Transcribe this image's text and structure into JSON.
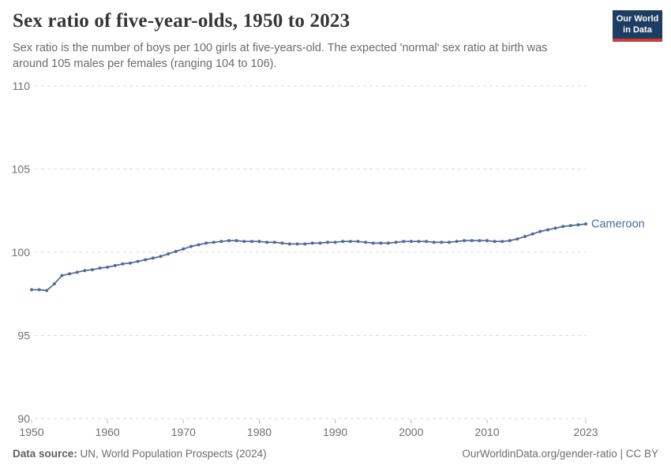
{
  "header": {
    "title": "Sex ratio of five-year-olds, 1950 to 2023",
    "subtitle": "Sex ratio is the number of boys per 100 girls at five-years-old. The expected 'normal' sex ratio at birth was around 105 males per females (ranging 104 to 106).",
    "logo": {
      "line1": "Our World",
      "line2": "in Data"
    }
  },
  "chart_data": {
    "type": "line",
    "title": "Sex ratio of five-year-olds, 1950 to 2023",
    "xlabel": "",
    "ylabel": "",
    "ylim": [
      90,
      110
    ],
    "yticks": [
      90,
      95,
      100,
      105,
      110
    ],
    "xticks": [
      1950,
      1960,
      1970,
      1980,
      1990,
      2000,
      2010,
      2023
    ],
    "grid": "horizontal-dashed",
    "legend": "end-of-line-label",
    "x": [
      1950,
      1951,
      1952,
      1953,
      1954,
      1955,
      1956,
      1957,
      1958,
      1959,
      1960,
      1961,
      1962,
      1963,
      1964,
      1965,
      1966,
      1967,
      1968,
      1969,
      1970,
      1971,
      1972,
      1973,
      1974,
      1975,
      1976,
      1977,
      1978,
      1979,
      1980,
      1981,
      1982,
      1983,
      1984,
      1985,
      1986,
      1987,
      1988,
      1989,
      1990,
      1991,
      1992,
      1993,
      1994,
      1995,
      1996,
      1997,
      1998,
      1999,
      2000,
      2001,
      2002,
      2003,
      2004,
      2005,
      2006,
      2007,
      2008,
      2009,
      2010,
      2011,
      2012,
      2013,
      2014,
      2015,
      2016,
      2017,
      2018,
      2019,
      2020,
      2021,
      2022,
      2023
    ],
    "series": [
      {
        "name": "Cameroon",
        "color": "#4c6a9c",
        "values": [
          97.75,
          97.75,
          97.7,
          98.1,
          98.6,
          98.7,
          98.8,
          98.9,
          98.95,
          99.05,
          99.1,
          99.2,
          99.3,
          99.35,
          99.45,
          99.55,
          99.65,
          99.75,
          99.9,
          100.05,
          100.2,
          100.35,
          100.45,
          100.55,
          100.6,
          100.65,
          100.7,
          100.7,
          100.65,
          100.65,
          100.65,
          100.6,
          100.6,
          100.55,
          100.5,
          100.5,
          100.5,
          100.55,
          100.55,
          100.6,
          100.6,
          100.65,
          100.65,
          100.65,
          100.6,
          100.55,
          100.55,
          100.55,
          100.6,
          100.65,
          100.65,
          100.65,
          100.65,
          100.6,
          100.6,
          100.6,
          100.65,
          100.7,
          100.7,
          100.7,
          100.7,
          100.65,
          100.65,
          100.7,
          100.8,
          100.95,
          101.1,
          101.25,
          101.35,
          101.45,
          101.55,
          101.6,
          101.65,
          101.7
        ]
      }
    ]
  },
  "footer": {
    "source_label": "Data source:",
    "source_value": " UN, World Population Prospects (2024)",
    "attribution": "OurWorldinData.org/gender-ratio | CC BY"
  },
  "colors": {
    "accent_line": "#4c6a9c",
    "logo_navy": "#1d3d63",
    "logo_red": "#cc3b3b",
    "grid": "#dadada",
    "tick_text": "#707070"
  }
}
